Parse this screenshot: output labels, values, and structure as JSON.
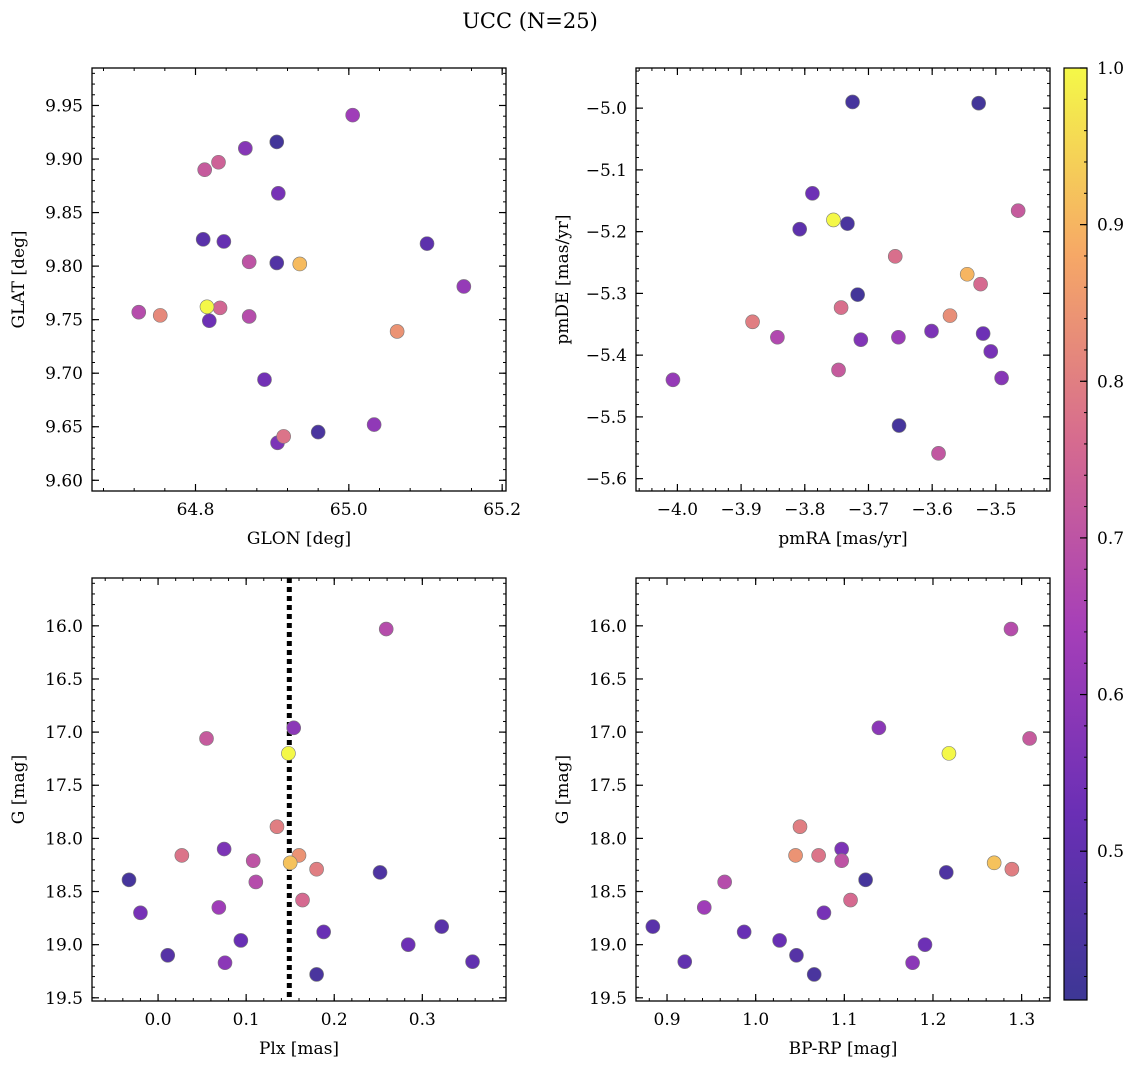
{
  "figure": {
    "title": "UCC (N=25)"
  },
  "colorbar": {
    "ticks": [
      0.5,
      0.6,
      0.7,
      0.8,
      0.9,
      1.0
    ],
    "tick_labels": [
      "0.5",
      "0.6",
      "0.7",
      "0.8",
      "0.9",
      "1.0"
    ],
    "range": [
      0.405,
      1.0
    ],
    "colormap": "plasma"
  },
  "chart_data": [
    {
      "type": "scatter",
      "xlabel": "GLON [deg]",
      "ylabel": "GLAT [deg]",
      "xlim": [
        64.665,
        65.205
      ],
      "ylim": [
        9.59,
        9.985
      ],
      "xticks": [
        64.8,
        65.0,
        65.2
      ],
      "xtick_labels": [
        "64.8",
        "65.0",
        "65.2"
      ],
      "yticks": [
        9.6,
        9.65,
        9.7,
        9.75,
        9.8,
        9.85,
        9.9,
        9.95
      ],
      "ytick_labels": [
        "9.60",
        "9.65",
        "9.70",
        "9.75",
        "9.80",
        "9.85",
        "9.90",
        "9.95"
      ],
      "points": [
        {
          "x": 65.005,
          "y": 9.941,
          "c": 0.63
        },
        {
          "x": 64.906,
          "y": 9.916,
          "c": 0.42
        },
        {
          "x": 64.865,
          "y": 9.91,
          "c": 0.58
        },
        {
          "x": 64.83,
          "y": 9.897,
          "c": 0.74
        },
        {
          "x": 64.812,
          "y": 9.89,
          "c": 0.72
        },
        {
          "x": 64.908,
          "y": 9.868,
          "c": 0.55
        },
        {
          "x": 64.81,
          "y": 9.825,
          "c": 0.48
        },
        {
          "x": 64.837,
          "y": 9.823,
          "c": 0.51
        },
        {
          "x": 65.102,
          "y": 9.821,
          "c": 0.49
        },
        {
          "x": 64.87,
          "y": 9.804,
          "c": 0.7
        },
        {
          "x": 64.906,
          "y": 9.803,
          "c": 0.46
        },
        {
          "x": 64.936,
          "y": 9.802,
          "c": 0.91
        },
        {
          "x": 65.15,
          "y": 9.781,
          "c": 0.61
        },
        {
          "x": 64.815,
          "y": 9.762,
          "c": 1.0
        },
        {
          "x": 64.832,
          "y": 9.761,
          "c": 0.75
        },
        {
          "x": 64.726,
          "y": 9.757,
          "c": 0.68
        },
        {
          "x": 64.754,
          "y": 9.754,
          "c": 0.82
        },
        {
          "x": 64.87,
          "y": 9.753,
          "c": 0.68
        },
        {
          "x": 64.818,
          "y": 9.749,
          "c": 0.53
        },
        {
          "x": 65.063,
          "y": 9.739,
          "c": 0.84
        },
        {
          "x": 64.89,
          "y": 9.694,
          "c": 0.54
        },
        {
          "x": 65.033,
          "y": 9.652,
          "c": 0.6
        },
        {
          "x": 64.96,
          "y": 9.645,
          "c": 0.44
        },
        {
          "x": 64.915,
          "y": 9.641,
          "c": 0.78
        },
        {
          "x": 64.907,
          "y": 9.635,
          "c": 0.56
        }
      ]
    },
    {
      "type": "scatter",
      "xlabel": "pmRA [mas/yr]",
      "ylabel": "pmDE [mas/yr]",
      "xlim": [
        -4.065,
        -3.415
      ],
      "ylim": [
        -5.62,
        -4.935
      ],
      "xticks": [
        -4.0,
        -3.9,
        -3.8,
        -3.7,
        -3.6,
        -3.5
      ],
      "xtick_labels": [
        "−4.0",
        "−3.9",
        "−3.8",
        "−3.7",
        "−3.6",
        "−3.5"
      ],
      "yticks": [
        -5.6,
        -5.5,
        -5.4,
        -5.3,
        -5.2,
        -5.1,
        -5.0
      ],
      "ytick_labels": [
        "−5.6",
        "−5.5",
        "−5.4",
        "−5.3",
        "−5.2",
        "−5.1",
        "−5.0"
      ],
      "points": [
        {
          "x": -3.725,
          "y": -4.99,
          "c": 0.43
        },
        {
          "x": -3.527,
          "y": -4.992,
          "c": 0.42
        },
        {
          "x": -3.788,
          "y": -5.138,
          "c": 0.53
        },
        {
          "x": -3.465,
          "y": -5.166,
          "c": 0.72
        },
        {
          "x": -3.755,
          "y": -5.181,
          "c": 1.0
        },
        {
          "x": -3.733,
          "y": -5.187,
          "c": 0.44
        },
        {
          "x": -3.808,
          "y": -5.196,
          "c": 0.49
        },
        {
          "x": -3.658,
          "y": -5.24,
          "c": 0.77
        },
        {
          "x": -3.545,
          "y": -5.269,
          "c": 0.9
        },
        {
          "x": -3.524,
          "y": -5.285,
          "c": 0.76
        },
        {
          "x": -3.717,
          "y": -5.302,
          "c": 0.42
        },
        {
          "x": -3.743,
          "y": -5.323,
          "c": 0.77
        },
        {
          "x": -3.572,
          "y": -5.336,
          "c": 0.83
        },
        {
          "x": -3.882,
          "y": -5.346,
          "c": 0.8
        },
        {
          "x": -3.601,
          "y": -5.361,
          "c": 0.56
        },
        {
          "x": -3.52,
          "y": -5.365,
          "c": 0.53
        },
        {
          "x": -3.843,
          "y": -5.371,
          "c": 0.67
        },
        {
          "x": -3.653,
          "y": -5.371,
          "c": 0.62
        },
        {
          "x": -3.712,
          "y": -5.375,
          "c": 0.57
        },
        {
          "x": -3.508,
          "y": -5.394,
          "c": 0.55
        },
        {
          "x": -3.747,
          "y": -5.424,
          "c": 0.72
        },
        {
          "x": -3.491,
          "y": -5.437,
          "c": 0.58
        },
        {
          "x": -4.007,
          "y": -5.44,
          "c": 0.61
        },
        {
          "x": -3.652,
          "y": -5.514,
          "c": 0.43
        },
        {
          "x": -3.59,
          "y": -5.559,
          "c": 0.71
        }
      ]
    },
    {
      "type": "scatter",
      "xlabel": "Plx [mas]",
      "ylabel": "G [mag]",
      "xlim": [
        -0.075,
        0.395
      ],
      "ylim": [
        19.53,
        15.55
      ],
      "y_inverted": true,
      "vline": 0.149,
      "xticks": [
        0.0,
        0.1,
        0.2,
        0.3
      ],
      "xtick_labels": [
        "0.0",
        "0.1",
        "0.2",
        "0.3"
      ],
      "yticks": [
        16.0,
        16.5,
        17.0,
        17.5,
        18.0,
        18.5,
        19.0,
        19.5
      ],
      "ytick_labels": [
        "16.0",
        "16.5",
        "17.0",
        "17.5",
        "18.0",
        "18.5",
        "19.0",
        "19.5"
      ],
      "points": [
        {
          "x": 0.259,
          "y": 16.03,
          "c": 0.68
        },
        {
          "x": 0.154,
          "y": 16.96,
          "c": 0.59
        },
        {
          "x": 0.055,
          "y": 17.06,
          "c": 0.72
        },
        {
          "x": 0.148,
          "y": 17.2,
          "c": 1.0
        },
        {
          "x": 0.135,
          "y": 17.89,
          "c": 0.8
        },
        {
          "x": 0.075,
          "y": 18.1,
          "c": 0.56
        },
        {
          "x": 0.16,
          "y": 18.16,
          "c": 0.84
        },
        {
          "x": 0.027,
          "y": 18.16,
          "c": 0.78
        },
        {
          "x": 0.108,
          "y": 18.21,
          "c": 0.7
        },
        {
          "x": 0.15,
          "y": 18.23,
          "c": 0.92
        },
        {
          "x": 0.18,
          "y": 18.29,
          "c": 0.8
        },
        {
          "x": 0.252,
          "y": 18.32,
          "c": 0.45
        },
        {
          "x": -0.033,
          "y": 18.39,
          "c": 0.43
        },
        {
          "x": 0.111,
          "y": 18.41,
          "c": 0.68
        },
        {
          "x": 0.164,
          "y": 18.58,
          "c": 0.76
        },
        {
          "x": 0.069,
          "y": 18.65,
          "c": 0.63
        },
        {
          "x": -0.02,
          "y": 18.7,
          "c": 0.55
        },
        {
          "x": 0.322,
          "y": 18.83,
          "c": 0.48
        },
        {
          "x": 0.188,
          "y": 18.88,
          "c": 0.52
        },
        {
          "x": 0.094,
          "y": 18.96,
          "c": 0.52
        },
        {
          "x": 0.284,
          "y": 19.0,
          "c": 0.53
        },
        {
          "x": 0.011,
          "y": 19.1,
          "c": 0.47
        },
        {
          "x": 0.357,
          "y": 19.16,
          "c": 0.5
        },
        {
          "x": 0.076,
          "y": 19.17,
          "c": 0.59
        },
        {
          "x": 0.18,
          "y": 19.28,
          "c": 0.44
        }
      ]
    },
    {
      "type": "scatter",
      "xlabel": "BP-RP [mag]",
      "ylabel": "G [mag]",
      "xlim": [
        0.865,
        1.332
      ],
      "ylim": [
        19.53,
        15.55
      ],
      "y_inverted": true,
      "xticks": [
        0.9,
        1.0,
        1.1,
        1.2,
        1.3
      ],
      "xtick_labels": [
        "0.9",
        "1.0",
        "1.1",
        "1.2",
        "1.3"
      ],
      "yticks": [
        16.0,
        16.5,
        17.0,
        17.5,
        18.0,
        18.5,
        19.0,
        19.5
      ],
      "ytick_labels": [
        "16.0",
        "16.5",
        "17.0",
        "17.5",
        "18.0",
        "18.5",
        "19.0",
        "19.5"
      ],
      "points": [
        {
          "x": 1.288,
          "y": 16.03,
          "c": 0.68
        },
        {
          "x": 1.139,
          "y": 16.96,
          "c": 0.59
        },
        {
          "x": 1.309,
          "y": 17.06,
          "c": 0.72
        },
        {
          "x": 1.218,
          "y": 17.2,
          "c": 1.0
        },
        {
          "x": 1.05,
          "y": 17.89,
          "c": 0.8
        },
        {
          "x": 1.097,
          "y": 18.1,
          "c": 0.56
        },
        {
          "x": 1.045,
          "y": 18.16,
          "c": 0.84
        },
        {
          "x": 1.071,
          "y": 18.16,
          "c": 0.78
        },
        {
          "x": 1.097,
          "y": 18.21,
          "c": 0.7
        },
        {
          "x": 1.269,
          "y": 18.23,
          "c": 0.92
        },
        {
          "x": 1.289,
          "y": 18.29,
          "c": 0.8
        },
        {
          "x": 1.215,
          "y": 18.32,
          "c": 0.45
        },
        {
          "x": 1.124,
          "y": 18.39,
          "c": 0.43
        },
        {
          "x": 0.965,
          "y": 18.41,
          "c": 0.68
        },
        {
          "x": 1.107,
          "y": 18.58,
          "c": 0.76
        },
        {
          "x": 0.942,
          "y": 18.65,
          "c": 0.63
        },
        {
          "x": 1.077,
          "y": 18.7,
          "c": 0.55
        },
        {
          "x": 0.884,
          "y": 18.83,
          "c": 0.48
        },
        {
          "x": 0.987,
          "y": 18.88,
          "c": 0.52
        },
        {
          "x": 1.027,
          "y": 18.96,
          "c": 0.52
        },
        {
          "x": 1.191,
          "y": 19.0,
          "c": 0.53
        },
        {
          "x": 1.046,
          "y": 19.1,
          "c": 0.47
        },
        {
          "x": 0.92,
          "y": 19.16,
          "c": 0.5
        },
        {
          "x": 1.177,
          "y": 19.17,
          "c": 0.59
        },
        {
          "x": 1.066,
          "y": 19.28,
          "c": 0.44
        }
      ]
    }
  ]
}
